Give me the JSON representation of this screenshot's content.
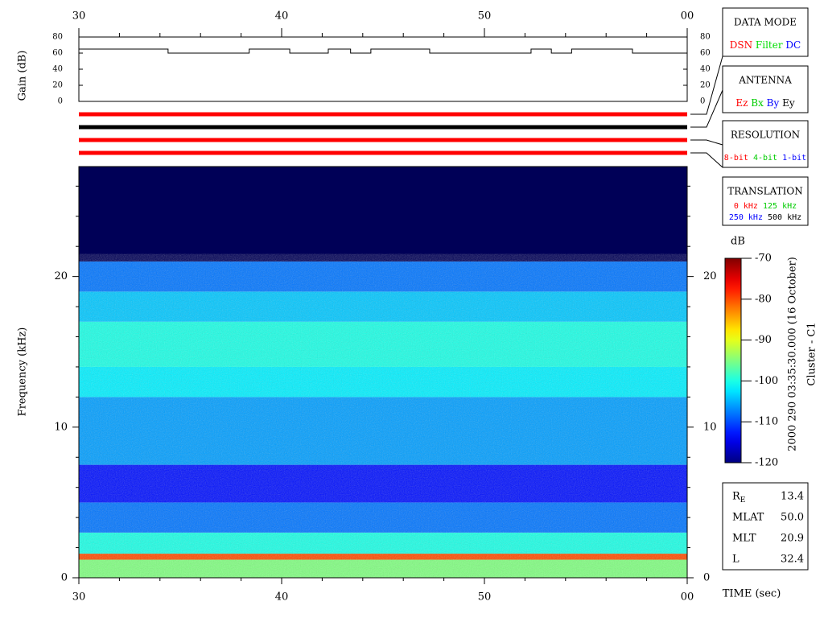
{
  "chart_data": [
    {
      "type": "line",
      "ylabel": "Gain (dB)",
      "color": "#000000",
      "step": true,
      "x": [
        30,
        34.4,
        34.4,
        38.4,
        38.4,
        40.4,
        40.4,
        42.3,
        42.3,
        43.4,
        43.4,
        44.4,
        44.4,
        47.3,
        47.3,
        52.3,
        52.3,
        53.3,
        53.3,
        54.3,
        54.3,
        57.3,
        57.3,
        60
      ],
      "values": [
        65,
        65,
        60,
        60,
        65,
        65,
        60,
        60,
        65,
        65,
        60,
        60,
        65,
        65,
        60,
        60,
        65,
        65,
        60,
        60,
        65,
        65,
        60,
        60
      ],
      "xlim": [
        30,
        60
      ],
      "xticks": [
        30,
        40,
        50,
        {
          "value": 60,
          "label": "00"
        }
      ],
      "xminorticks": [
        32,
        34,
        36,
        38,
        42,
        44,
        46,
        48,
        52,
        54,
        56,
        58
      ],
      "ylim": [
        0,
        80
      ],
      "yticks": [
        0,
        20,
        40,
        60,
        80
      ]
    },
    {
      "type": "status",
      "colors": [
        "#ff0000",
        "#000000",
        "#ff0000",
        "#ff0000"
      ]
    },
    {
      "type": "heatmap",
      "ylabel": "Frequency (kHz)",
      "xlabel": "TIME (sec)",
      "bands": [
        0,
        1.2,
        1.6,
        3,
        5,
        7.5,
        12,
        14,
        17,
        19,
        21,
        27.3
      ],
      "values": [
        -95,
        -80,
        -100,
        -108,
        -113,
        -106,
        -102,
        -100,
        -104,
        -108,
        -122
      ],
      "xlim": [
        30,
        60
      ],
      "xticks": [
        30,
        40,
        50,
        {
          "value": 60,
          "label": "00"
        }
      ],
      "xminorticks": [
        32,
        34,
        36,
        38,
        42,
        44,
        46,
        48,
        52,
        54,
        56,
        58
      ],
      "ylim": [
        0,
        27.3
      ],
      "yticks": [
        0,
        10,
        20
      ],
      "yminorticks": [
        2,
        4,
        6,
        8,
        12,
        14,
        16,
        18,
        22,
        24,
        26
      ],
      "colorbar": {
        "label": "dB",
        "lim": [
          -120,
          -70
        ],
        "ticks": [
          -120,
          -110,
          -100,
          -90,
          -80,
          -70
        ]
      }
    }
  ],
  "panels": [
    {
      "title": "DATA MODE",
      "items": [
        {
          "text": "DSN",
          "color": "#ff0000"
        },
        {
          "text": "Filter",
          "color": "#00dd00"
        },
        {
          "text": "DC",
          "color": "#0000ff"
        }
      ]
    },
    {
      "title": "ANTENNA",
      "items": [
        {
          "text": "Ez",
          "color": "#ff0000"
        },
        {
          "text": "Bx",
          "color": "#00cc00"
        },
        {
          "text": "By",
          "color": "#0000ff"
        },
        {
          "text": "Ey",
          "color": "#000000"
        }
      ]
    },
    {
      "title": "RESOLUTION",
      "items": [
        {
          "text": "8-bit",
          "color": "#ff0000"
        },
        {
          "text": "4-bit",
          "color": "#00cc00"
        },
        {
          "text": "1-bit",
          "color": "#0000ff"
        }
      ]
    },
    {
      "title": "TRANSLATION",
      "items": [
        {
          "text": "0 kHz",
          "color": "#ff0000"
        },
        {
          "text": "125 kHz",
          "color": "#00cc00"
        },
        {
          "text": "250 kHz",
          "color": "#0000ff"
        },
        {
          "text": "500 kHz",
          "color": "#000000"
        }
      ]
    }
  ],
  "side_labels": [
    "2000 290 03:35:30.000 (16 October)",
    "Cluster - C1"
  ],
  "parameters": [
    {
      "label": "R",
      "sub": "E",
      "value": "13.4"
    },
    {
      "label": "MLAT",
      "value": "50.0"
    },
    {
      "label": "MLT",
      "value": "20.9"
    },
    {
      "label": "L",
      "value": "32.4"
    }
  ]
}
